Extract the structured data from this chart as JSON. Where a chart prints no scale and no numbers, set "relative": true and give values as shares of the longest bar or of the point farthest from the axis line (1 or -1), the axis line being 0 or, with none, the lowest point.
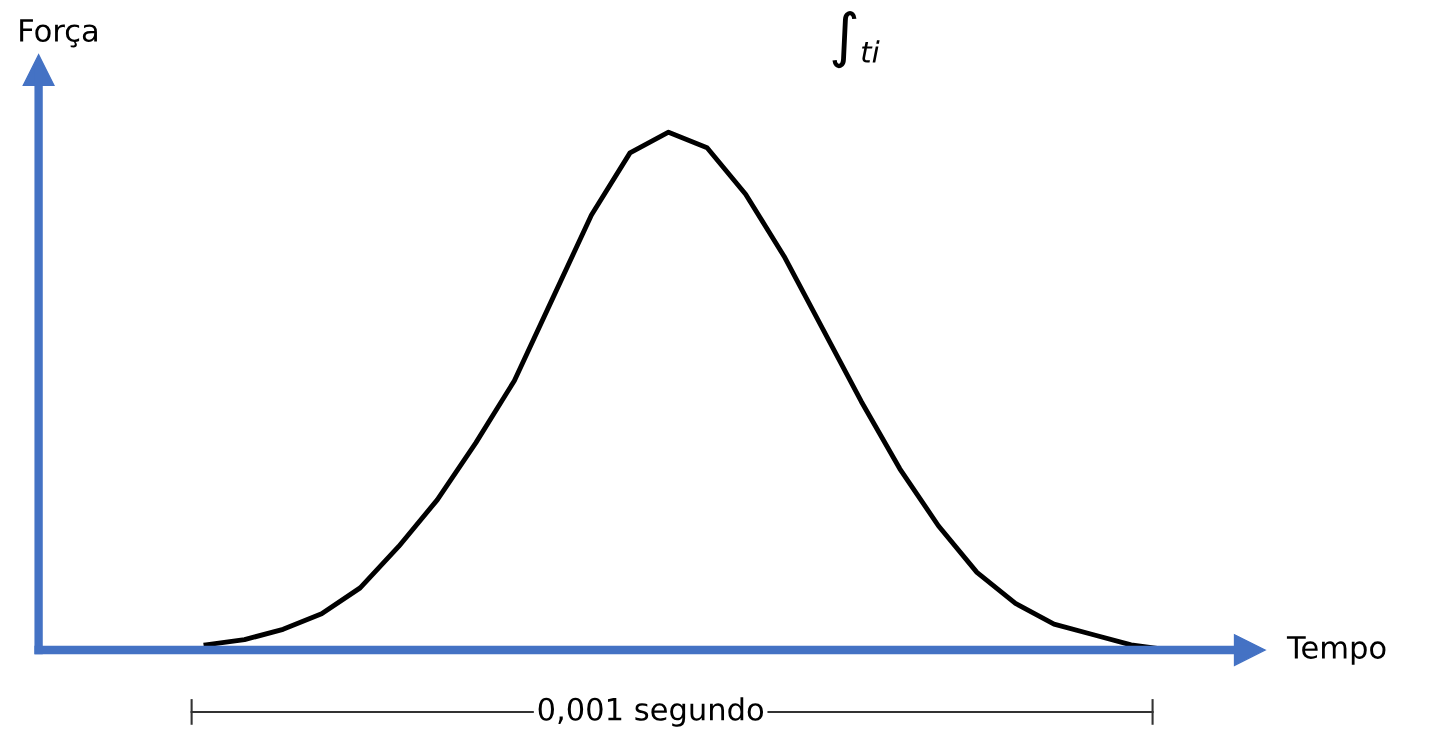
{
  "chart_data": {
    "type": "line",
    "relative": true,
    "xlabel": "Tempo",
    "ylabel": "Força",
    "categories": [
      null,
      null,
      null,
      null,
      null,
      null,
      null,
      null,
      null,
      null,
      null,
      null,
      null,
      null,
      null,
      null,
      null,
      null,
      null,
      null,
      null,
      null,
      null,
      null,
      null,
      null
    ],
    "series": [
      {
        "color": "#000000",
        "values": [
          0.01,
          0.02,
          0.04,
          0.07,
          0.12,
          0.2,
          0.29,
          0.4,
          0.52,
          0.68,
          0.84,
          0.96,
          1.0,
          0.97,
          0.88,
          0.76,
          0.62,
          0.48,
          0.35,
          0.24,
          0.15,
          0.09,
          0.05,
          0.03,
          0.01,
          0.0
        ]
      }
    ],
    "annotations": [
      "0,001 segundo",
      "∫$_{ti}$"
    ],
    "marker": "none",
    "line_style": "solid"
  }
}
